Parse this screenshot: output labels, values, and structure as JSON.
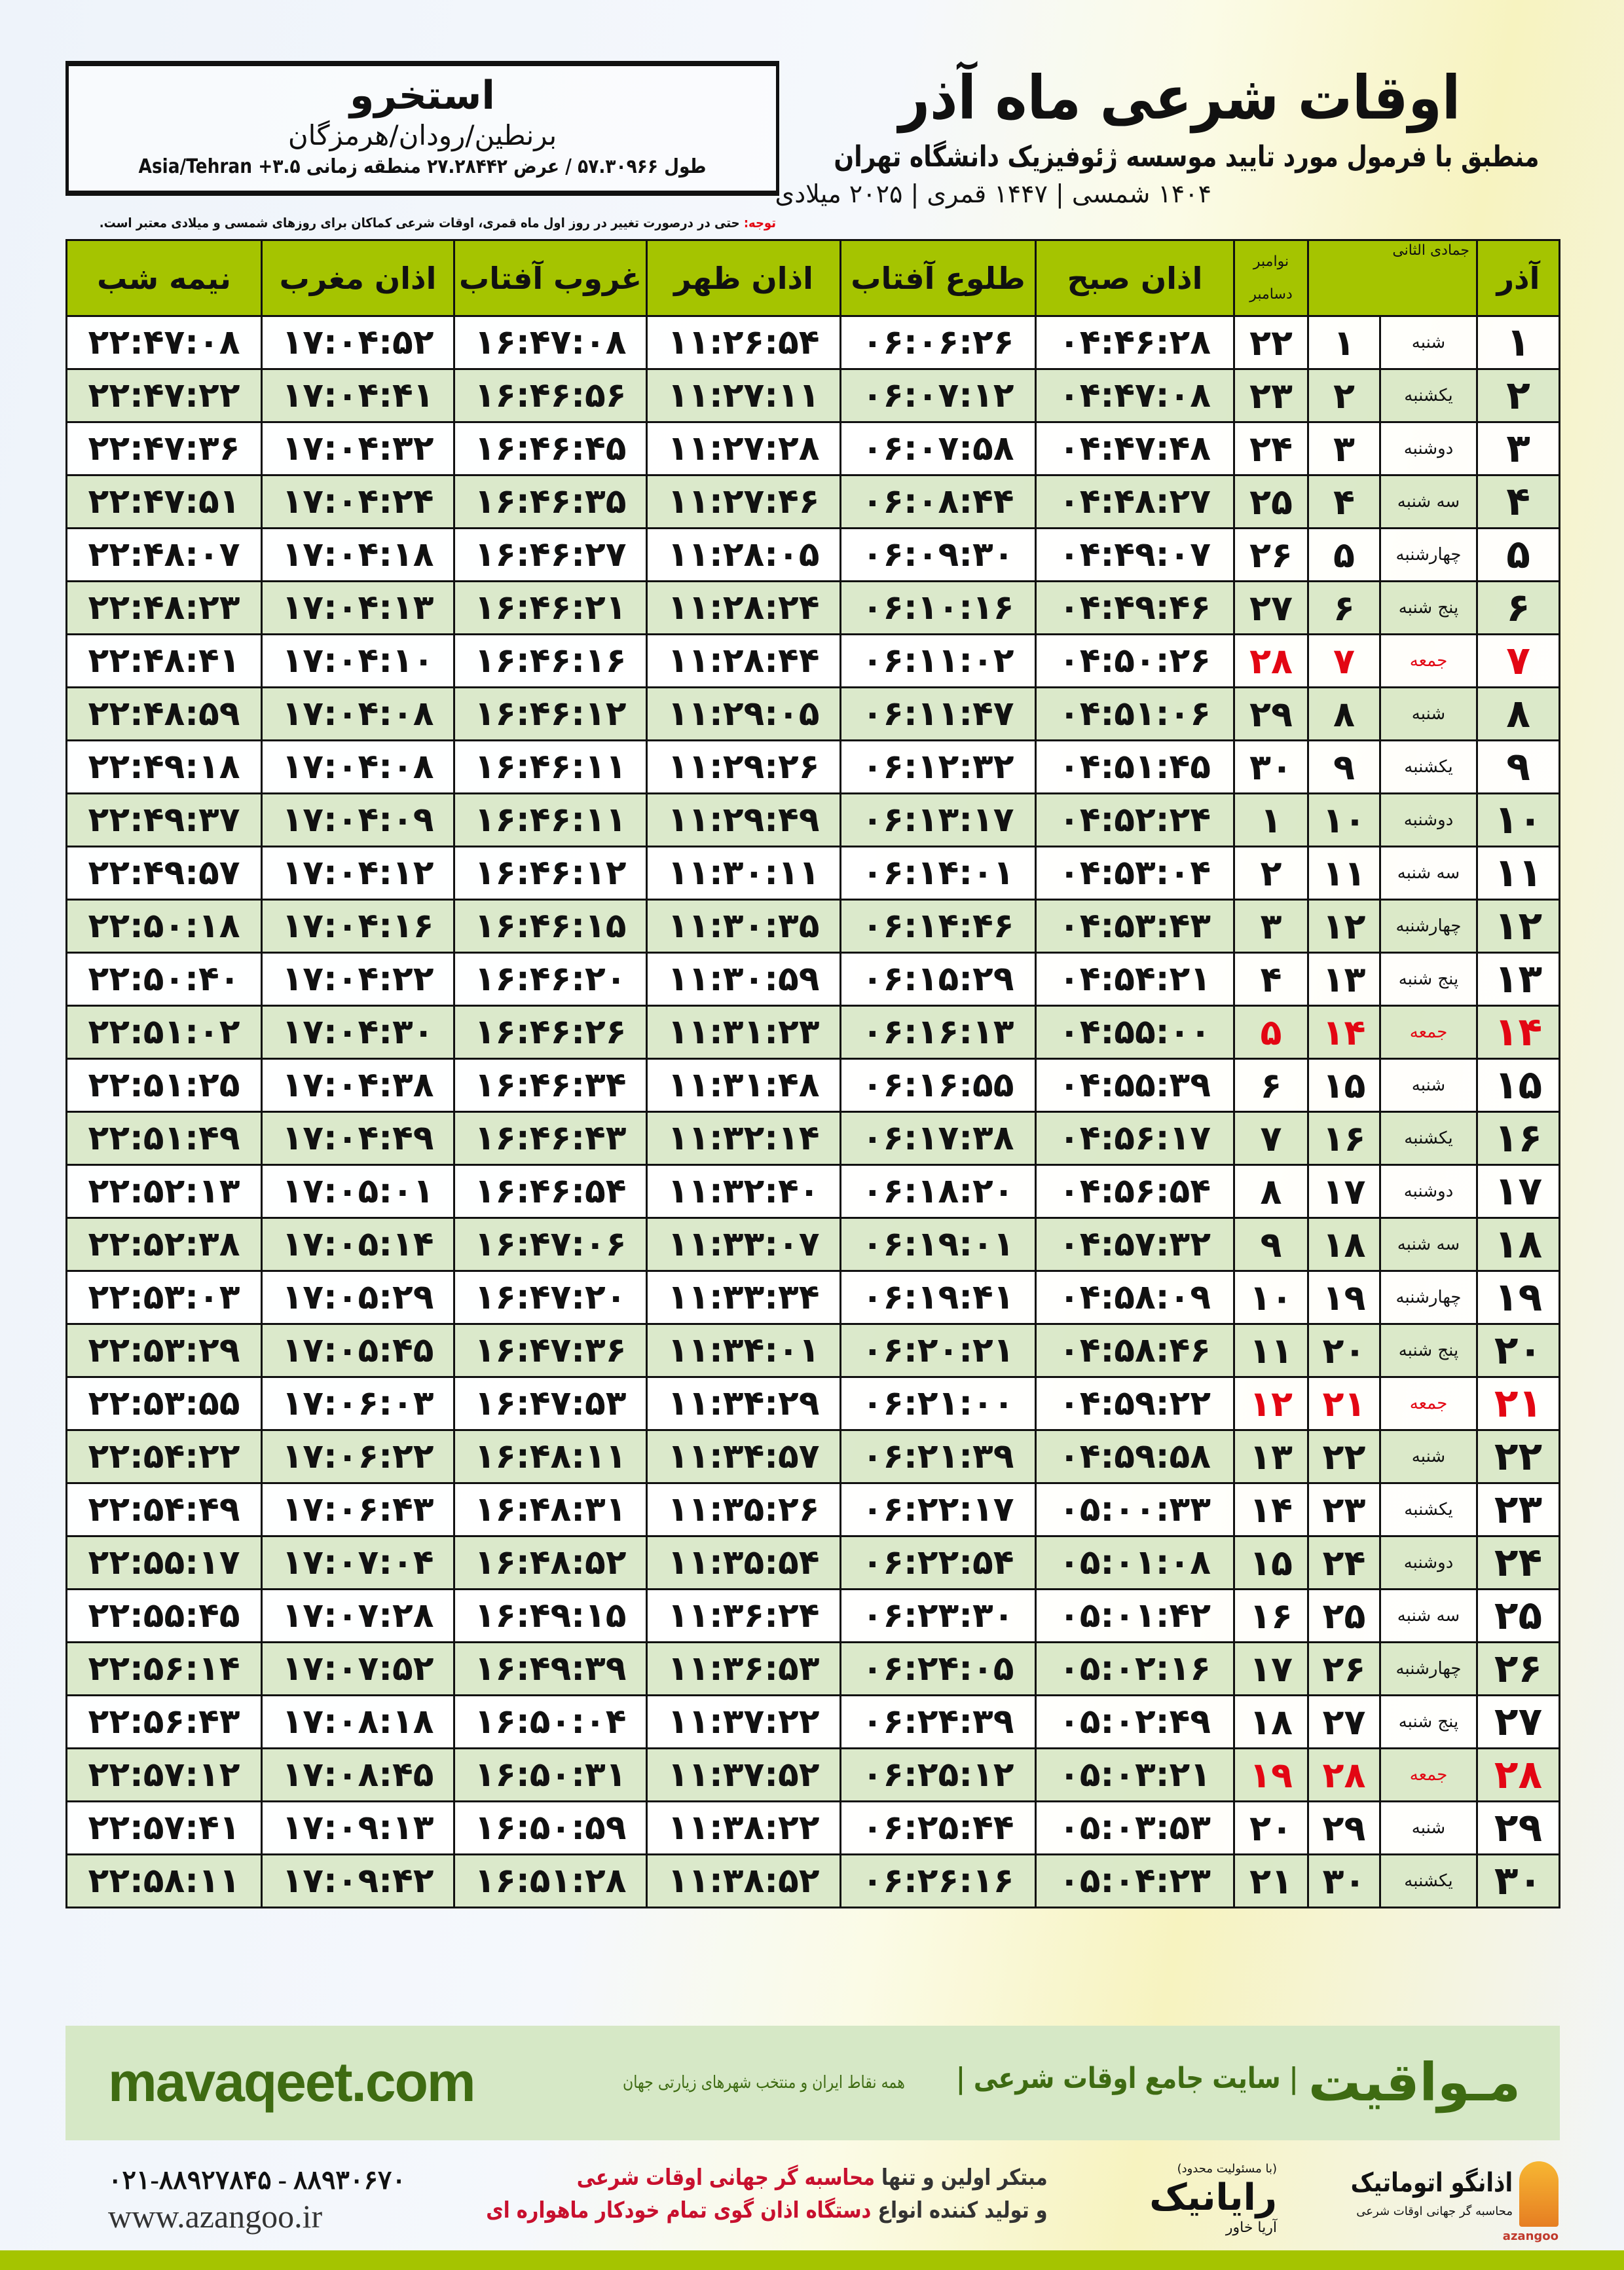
{
  "header": {
    "title": "اوقات شرعی ماه آذر",
    "subtitle": "منطبق با فرمول مورد تایید موسسه ژئوفیزیک دانشگاه تهران",
    "years": "۱۴۰۴ شمسی | ۱۴۴۷ قمری | ۲۰۲۵ میلادی"
  },
  "location": {
    "city": "استخرو",
    "region": "برنطین/رودان/هرمزگان",
    "coords": "طول ۵۷.۳۰۹۶۶ / عرض ۲۷.۲۸۴۴۲ منطقه زمانی ۳.۵+ Asia/Tehran"
  },
  "note": {
    "label": "توجه:",
    "text": " حتی در درصورت تغییر در روز اول ماه قمری، اوقات شرعی کماکان برای روزهای شمسی و میلادی معتبر است."
  },
  "table": {
    "headers": {
      "azar": "آذر",
      "hijri": "جمادی الثانی",
      "greg1": "نوامبر",
      "greg2": "دسامبر",
      "fajr": "اذان صبح",
      "sunrise": "طلوع آفتاب",
      "dhuhr": "اذان ظهر",
      "sunset": "غروب آفتاب",
      "maghrib": "اذان مغرب",
      "midnight": "نیمه شب"
    },
    "rows": [
      [
        "۱",
        "شنبه",
        "۱",
        "۲۲",
        "۰۴:۴۶:۲۸",
        "۰۶:۰۶:۲۶",
        "۱۱:۲۶:۵۴",
        "۱۶:۴۷:۰۸",
        "۱۷:۰۴:۵۲",
        "۲۲:۴۷:۰۸"
      ],
      [
        "۲",
        "یکشنبه",
        "۲",
        "۲۳",
        "۰۴:۴۷:۰۸",
        "۰۶:۰۷:۱۲",
        "۱۱:۲۷:۱۱",
        "۱۶:۴۶:۵۶",
        "۱۷:۰۴:۴۱",
        "۲۲:۴۷:۲۲"
      ],
      [
        "۳",
        "دوشنبه",
        "۳",
        "۲۴",
        "۰۴:۴۷:۴۸",
        "۰۶:۰۷:۵۸",
        "۱۱:۲۷:۲۸",
        "۱۶:۴۶:۴۵",
        "۱۷:۰۴:۳۲",
        "۲۲:۴۷:۳۶"
      ],
      [
        "۴",
        "سه شنبه",
        "۴",
        "۲۵",
        "۰۴:۴۸:۲۷",
        "۰۶:۰۸:۴۴",
        "۱۱:۲۷:۴۶",
        "۱۶:۴۶:۳۵",
        "۱۷:۰۴:۲۴",
        "۲۲:۴۷:۵۱"
      ],
      [
        "۵",
        "چهارشنبه",
        "۵",
        "۲۶",
        "۰۴:۴۹:۰۷",
        "۰۶:۰۹:۳۰",
        "۱۱:۲۸:۰۵",
        "۱۶:۴۶:۲۷",
        "۱۷:۰۴:۱۸",
        "۲۲:۴۸:۰۷"
      ],
      [
        "۶",
        "پنج شنبه",
        "۶",
        "۲۷",
        "۰۴:۴۹:۴۶",
        "۰۶:۱۰:۱۶",
        "۱۱:۲۸:۲۴",
        "۱۶:۴۶:۲۱",
        "۱۷:۰۴:۱۳",
        "۲۲:۴۸:۲۳"
      ],
      [
        "۷",
        "جمعه",
        "۷",
        "۲۸",
        "۰۴:۵۰:۲۶",
        "۰۶:۱۱:۰۲",
        "۱۱:۲۸:۴۴",
        "۱۶:۴۶:۱۶",
        "۱۷:۰۴:۱۰",
        "۲۲:۴۸:۴۱"
      ],
      [
        "۸",
        "شنبه",
        "۸",
        "۲۹",
        "۰۴:۵۱:۰۶",
        "۰۶:۱۱:۴۷",
        "۱۱:۲۹:۰۵",
        "۱۶:۴۶:۱۲",
        "۱۷:۰۴:۰۸",
        "۲۲:۴۸:۵۹"
      ],
      [
        "۹",
        "یکشنبه",
        "۹",
        "۳۰",
        "۰۴:۵۱:۴۵",
        "۰۶:۱۲:۳۲",
        "۱۱:۲۹:۲۶",
        "۱۶:۴۶:۱۱",
        "۱۷:۰۴:۰۸",
        "۲۲:۴۹:۱۸"
      ],
      [
        "۱۰",
        "دوشنبه",
        "۱۰",
        "۱",
        "۰۴:۵۲:۲۴",
        "۰۶:۱۳:۱۷",
        "۱۱:۲۹:۴۹",
        "۱۶:۴۶:۱۱",
        "۱۷:۰۴:۰۹",
        "۲۲:۴۹:۳۷"
      ],
      [
        "۱۱",
        "سه شنبه",
        "۱۱",
        "۲",
        "۰۴:۵۳:۰۴",
        "۰۶:۱۴:۰۱",
        "۱۱:۳۰:۱۱",
        "۱۶:۴۶:۱۲",
        "۱۷:۰۴:۱۲",
        "۲۲:۴۹:۵۷"
      ],
      [
        "۱۲",
        "چهارشنبه",
        "۱۲",
        "۳",
        "۰۴:۵۳:۴۳",
        "۰۶:۱۴:۴۶",
        "۱۱:۳۰:۳۵",
        "۱۶:۴۶:۱۵",
        "۱۷:۰۴:۱۶",
        "۲۲:۵۰:۱۸"
      ],
      [
        "۱۳",
        "پنج شنبه",
        "۱۳",
        "۴",
        "۰۴:۵۴:۲۱",
        "۰۶:۱۵:۲۹",
        "۱۱:۳۰:۵۹",
        "۱۶:۴۶:۲۰",
        "۱۷:۰۴:۲۲",
        "۲۲:۵۰:۴۰"
      ],
      [
        "۱۴",
        "جمعه",
        "۱۴",
        "۵",
        "۰۴:۵۵:۰۰",
        "۰۶:۱۶:۱۳",
        "۱۱:۳۱:۲۳",
        "۱۶:۴۶:۲۶",
        "۱۷:۰۴:۳۰",
        "۲۲:۵۱:۰۲"
      ],
      [
        "۱۵",
        "شنبه",
        "۱۵",
        "۶",
        "۰۴:۵۵:۳۹",
        "۰۶:۱۶:۵۵",
        "۱۱:۳۱:۴۸",
        "۱۶:۴۶:۳۴",
        "۱۷:۰۴:۳۸",
        "۲۲:۵۱:۲۵"
      ],
      [
        "۱۶",
        "یکشنبه",
        "۱۶",
        "۷",
        "۰۴:۵۶:۱۷",
        "۰۶:۱۷:۳۸",
        "۱۱:۳۲:۱۴",
        "۱۶:۴۶:۴۳",
        "۱۷:۰۴:۴۹",
        "۲۲:۵۱:۴۹"
      ],
      [
        "۱۷",
        "دوشنبه",
        "۱۷",
        "۸",
        "۰۴:۵۶:۵۴",
        "۰۶:۱۸:۲۰",
        "۱۱:۳۲:۴۰",
        "۱۶:۴۶:۵۴",
        "۱۷:۰۵:۰۱",
        "۲۲:۵۲:۱۳"
      ],
      [
        "۱۸",
        "سه شنبه",
        "۱۸",
        "۹",
        "۰۴:۵۷:۳۲",
        "۰۶:۱۹:۰۱",
        "۱۱:۳۳:۰۷",
        "۱۶:۴۷:۰۶",
        "۱۷:۰۵:۱۴",
        "۲۲:۵۲:۳۸"
      ],
      [
        "۱۹",
        "چهارشنبه",
        "۱۹",
        "۱۰",
        "۰۴:۵۸:۰۹",
        "۰۶:۱۹:۴۱",
        "۱۱:۳۳:۳۴",
        "۱۶:۴۷:۲۰",
        "۱۷:۰۵:۲۹",
        "۲۲:۵۳:۰۳"
      ],
      [
        "۲۰",
        "پنج شنبه",
        "۲۰",
        "۱۱",
        "۰۴:۵۸:۴۶",
        "۰۶:۲۰:۲۱",
        "۱۱:۳۴:۰۱",
        "۱۶:۴۷:۳۶",
        "۱۷:۰۵:۴۵",
        "۲۲:۵۳:۲۹"
      ],
      [
        "۲۱",
        "جمعه",
        "۲۱",
        "۱۲",
        "۰۴:۵۹:۲۲",
        "۰۶:۲۱:۰۰",
        "۱۱:۳۴:۲۹",
        "۱۶:۴۷:۵۳",
        "۱۷:۰۶:۰۳",
        "۲۲:۵۳:۵۵"
      ],
      [
        "۲۲",
        "شنبه",
        "۲۲",
        "۱۳",
        "۰۴:۵۹:۵۸",
        "۰۶:۲۱:۳۹",
        "۱۱:۳۴:۵۷",
        "۱۶:۴۸:۱۱",
        "۱۷:۰۶:۲۲",
        "۲۲:۵۴:۲۲"
      ],
      [
        "۲۳",
        "یکشنبه",
        "۲۳",
        "۱۴",
        "۰۵:۰۰:۳۳",
        "۰۶:۲۲:۱۷",
        "۱۱:۳۵:۲۶",
        "۱۶:۴۸:۳۱",
        "۱۷:۰۶:۴۳",
        "۲۲:۵۴:۴۹"
      ],
      [
        "۲۴",
        "دوشنبه",
        "۲۴",
        "۱۵",
        "۰۵:۰۱:۰۸",
        "۰۶:۲۲:۵۴",
        "۱۱:۳۵:۵۴",
        "۱۶:۴۸:۵۲",
        "۱۷:۰۷:۰۴",
        "۲۲:۵۵:۱۷"
      ],
      [
        "۲۵",
        "سه شنبه",
        "۲۵",
        "۱۶",
        "۰۵:۰۱:۴۲",
        "۰۶:۲۳:۳۰",
        "۱۱:۳۶:۲۴",
        "۱۶:۴۹:۱۵",
        "۱۷:۰۷:۲۸",
        "۲۲:۵۵:۴۵"
      ],
      [
        "۲۶",
        "چهارشنبه",
        "۲۶",
        "۱۷",
        "۰۵:۰۲:۱۶",
        "۰۶:۲۴:۰۵",
        "۱۱:۳۶:۵۳",
        "۱۶:۴۹:۳۹",
        "۱۷:۰۷:۵۲",
        "۲۲:۵۶:۱۴"
      ],
      [
        "۲۷",
        "پنج شنبه",
        "۲۷",
        "۱۸",
        "۰۵:۰۲:۴۹",
        "۰۶:۲۴:۳۹",
        "۱۱:۳۷:۲۲",
        "۱۶:۵۰:۰۴",
        "۱۷:۰۸:۱۸",
        "۲۲:۵۶:۴۳"
      ],
      [
        "۲۸",
        "جمعه",
        "۲۸",
        "۱۹",
        "۰۵:۰۳:۲۱",
        "۰۶:۲۵:۱۲",
        "۱۱:۳۷:۵۲",
        "۱۶:۵۰:۳۱",
        "۱۷:۰۸:۴۵",
        "۲۲:۵۷:۱۲"
      ],
      [
        "۲۹",
        "شنبه",
        "۲۹",
        "۲۰",
        "۰۵:۰۳:۵۳",
        "۰۶:۲۵:۴۴",
        "۱۱:۳۸:۲۲",
        "۱۶:۵۰:۵۹",
        "۱۷:۰۹:۱۳",
        "۲۲:۵۷:۴۱"
      ],
      [
        "۳۰",
        "یکشنبه",
        "۳۰",
        "۲۱",
        "۰۵:۰۴:۲۳",
        "۰۶:۲۶:۱۶",
        "۱۱:۳۸:۵۲",
        "۱۶:۵۱:۲۸",
        "۱۷:۰۹:۴۲",
        "۲۲:۵۸:۱۱"
      ]
    ],
    "friday_label": "جمعه"
  },
  "colors": {
    "header_green": "#a5c400",
    "row_alt": "#d9e8c8",
    "friday_red": "#e30613",
    "brand_green": "#3e6b12"
  },
  "footer": {
    "mavaqeet_logo": "مـواقیت",
    "mavaqeet_tagline": "| سایت جامع اوقات شرعی |",
    "mavaqeet_sub": "همه نقاط ایران و منتخب شهرهای زیارتی جهان",
    "mavaqeet_url": "mavaqeet.com",
    "phone": "۰۲۱-۸۸۹۲۷۸۴۵ - ۸۸۹۳۰۶۷۰",
    "website": "www.azangoo.ir",
    "promo1a": "مبتکر اولین و تنها ",
    "promo1b": "محاسبه گر جهانی اوقات شرعی",
    "promo2a": "و تولید کننده انواع ",
    "promo2b": "دستگاه اذان گوی تمام خودکار ماهواره ای",
    "raynik_small": "(با مسئولیت محدود)",
    "raynik": "رایانیک",
    "raynik_sub": "آریا خاور",
    "azangoo_name": "اذانگو اتوماتیک",
    "azangoo_sub": "محاسبه گر جهانی اوقات شرعی",
    "azangoo_en": "azangoo"
  }
}
